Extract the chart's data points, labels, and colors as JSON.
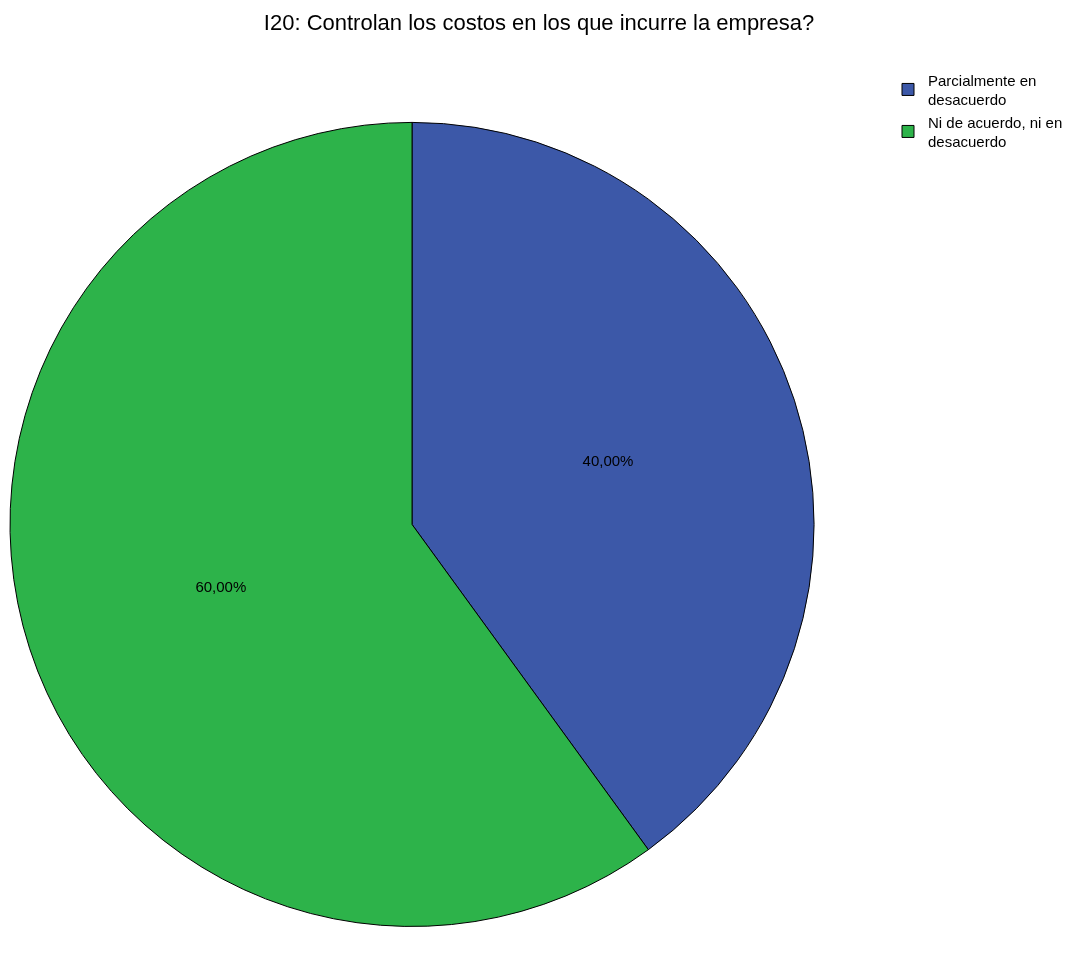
{
  "chart_data": {
    "type": "pie",
    "title": "I20: Controlan los costos en los que incurre la empresa?",
    "categories": [
      "Parcialmente en desacuerdo",
      "Ni de acuerdo, ni en desacuerdo"
    ],
    "values": [
      40,
      60
    ],
    "colors": [
      "#3c58a8",
      "#2db34a"
    ],
    "value_labels": [
      "40,00%",
      "60,00%"
    ],
    "legend": "top right"
  }
}
